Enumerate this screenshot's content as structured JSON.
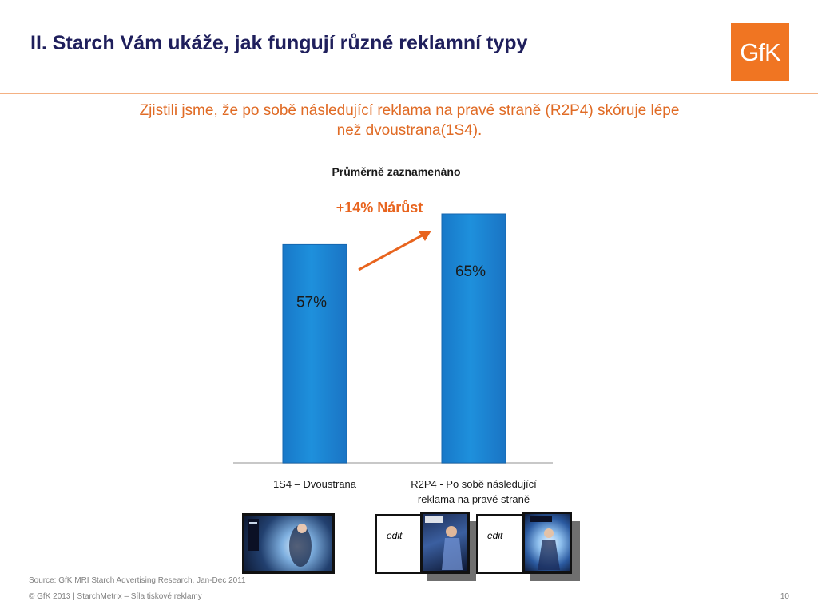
{
  "slide": {
    "title": "II. Starch Vám ukáže, jak fungují různé reklamní typy",
    "logo_text": "GfK",
    "subtitle_line1": "Zjistili jsme, že po sobě následující reklama na pravé straně (R2P4) skóruje lépe",
    "subtitle_line2": "než dvoustrana(1S4)."
  },
  "chart_data": {
    "type": "bar",
    "title": "Průměrně zaznamenáno",
    "categories": [
      [
        "1S4 – Dvoustrana"
      ],
      [
        "R2P4 -  Po sobě následující",
        "reklama na pravé straně"
      ]
    ],
    "values": [
      57,
      65
    ],
    "value_labels": [
      "57%",
      "65%"
    ],
    "ylim": [
      0,
      75
    ],
    "bar_color": "#1e90dc",
    "annotation": "+14% Nárůst",
    "annotation_color": "#e8641e",
    "grid": false
  },
  "thumbnails": {
    "edit_label": "edit"
  },
  "footer": {
    "source": "Source: GfK MRI Starch Advertising Research, Jan-Dec 2011",
    "copyright": "© GfK 2013 | StarchMetrix – Síla tiskové reklamy",
    "page_number": "10"
  },
  "colors": {
    "title": "#1f1f5c",
    "accent": "#e06b25",
    "logo_bg": "#f07522",
    "rule": "#f4b183"
  }
}
